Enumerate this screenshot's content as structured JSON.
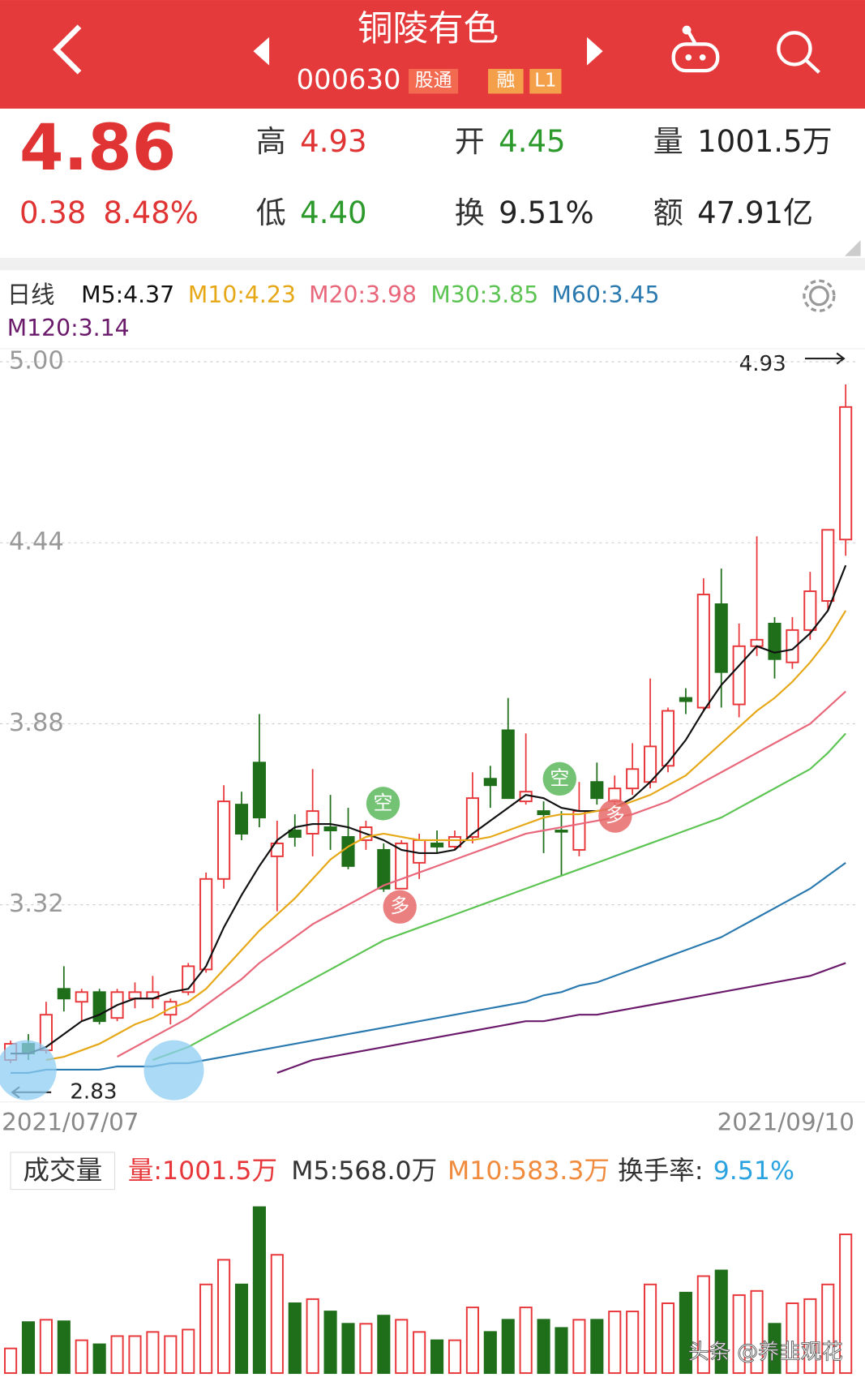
{
  "header": {
    "title": "铜陵有色",
    "code": "000630",
    "tags": [
      "股通",
      "融",
      "L1"
    ]
  },
  "quote": {
    "price": "4.86",
    "change": "0.38",
    "change_pct": "8.48%",
    "stats": [
      {
        "label": "高",
        "value": "4.93"
      },
      {
        "label": "低",
        "value": "4.40"
      },
      {
        "label": "开",
        "value": "4.45"
      },
      {
        "label": "换",
        "value": "9.51%"
      },
      {
        "label": "量",
        "value": "1001.5万"
      },
      {
        "label": "额",
        "value": "47.91亿"
      }
    ]
  },
  "chart_data": [
    {
      "type": "candlestick",
      "period": "日线",
      "up_color": "#e8373a",
      "down_color": "#1f6e1a",
      "categories": [
        "2021/07/07",
        null,
        null,
        null,
        null,
        null,
        null,
        null,
        null,
        null,
        null,
        null,
        null,
        null,
        null,
        null,
        null,
        null,
        null,
        null,
        null,
        null,
        null,
        null,
        null,
        null,
        null,
        null,
        null,
        null,
        null,
        null,
        null,
        null,
        null,
        null,
        null,
        null,
        null,
        null,
        null,
        null,
        null,
        null,
        null,
        null,
        null,
        "2021/09/10"
      ],
      "open": [
        2.84,
        2.89,
        2.87,
        3.06,
        3.02,
        3.05,
        2.97,
        3.03,
        3.03,
        2.98,
        3.05,
        3.12,
        3.4,
        3.63,
        3.76,
        3.47,
        3.55,
        3.54,
        3.56,
        3.53,
        3.52,
        3.49,
        3.37,
        3.45,
        3.51,
        3.5,
        3.53,
        3.71,
        3.86,
        3.64,
        3.61,
        3.55,
        3.49,
        3.7,
        3.64,
        3.68,
        3.7,
        3.75,
        3.96,
        3.93,
        4.25,
        3.94,
        4.12,
        4.19,
        4.07,
        4.17,
        4.26,
        4.45
      ],
      "high": [
        2.9,
        2.92,
        3.02,
        3.13,
        3.06,
        3.06,
        3.06,
        3.08,
        3.1,
        3.03,
        3.14,
        3.42,
        3.69,
        3.67,
        3.91,
        3.58,
        3.6,
        3.74,
        3.66,
        3.62,
        3.58,
        3.51,
        3.52,
        3.54,
        3.55,
        3.55,
        3.73,
        3.75,
        3.96,
        3.85,
        3.64,
        3.61,
        3.7,
        3.76,
        3.72,
        3.82,
        4.02,
        3.93,
        3.99,
        4.33,
        4.36,
        4.19,
        4.46,
        4.21,
        4.21,
        4.35,
        4.48,
        4.93
      ],
      "low": [
        2.83,
        2.84,
        2.86,
        2.99,
        2.96,
        2.95,
        2.96,
        3.0,
        3.0,
        2.95,
        3.04,
        3.11,
        3.37,
        3.52,
        3.56,
        3.3,
        3.5,
        3.47,
        3.49,
        3.43,
        3.49,
        3.36,
        3.37,
        3.4,
        3.48,
        3.49,
        3.51,
        3.62,
        3.65,
        3.63,
        3.48,
        3.41,
        3.47,
        3.63,
        3.61,
        3.66,
        3.68,
        3.73,
        3.91,
        3.92,
        3.93,
        3.9,
        4.09,
        4.02,
        4.05,
        4.14,
        4.23,
        4.4
      ],
      "close": [
        2.89,
        2.86,
        2.98,
        3.03,
        3.05,
        2.96,
        3.05,
        3.05,
        3.05,
        3.02,
        3.13,
        3.4,
        3.64,
        3.54,
        3.59,
        3.51,
        3.53,
        3.61,
        3.55,
        3.44,
        3.56,
        3.37,
        3.51,
        3.52,
        3.5,
        3.53,
        3.65,
        3.69,
        3.65,
        3.67,
        3.6,
        3.55,
        3.61,
        3.65,
        3.68,
        3.74,
        3.81,
        3.92,
        3.95,
        4.28,
        4.04,
        4.12,
        4.14,
        4.08,
        4.17,
        4.29,
        4.48,
        4.86
      ],
      "series": [
        {
          "name": "M5:4.37",
          "color": "#111111",
          "values": [
            2.86,
            2.86,
            2.88,
            2.92,
            2.96,
            2.98,
            3.01,
            3.03,
            3.03,
            3.05,
            3.06,
            3.13,
            3.25,
            3.35,
            3.44,
            3.52,
            3.56,
            3.57,
            3.57,
            3.56,
            3.54,
            3.52,
            3.49,
            3.48,
            3.48,
            3.49,
            3.54,
            3.58,
            3.62,
            3.66,
            3.65,
            3.62,
            3.61,
            3.61,
            3.62,
            3.65,
            3.7,
            3.76,
            3.83,
            3.92,
            4.0,
            4.06,
            4.12,
            4.1,
            4.11,
            4.16,
            4.23,
            4.37
          ]
        },
        {
          "name": "M10:4.23",
          "color": "#e6a817",
          "values": [
            null,
            null,
            2.84,
            2.85,
            2.87,
            2.89,
            2.92,
            2.95,
            2.97,
            3.0,
            3.02,
            3.06,
            3.12,
            3.18,
            3.24,
            3.29,
            3.34,
            3.4,
            3.46,
            3.5,
            3.53,
            3.54,
            3.53,
            3.52,
            3.52,
            3.52,
            3.52,
            3.53,
            3.55,
            3.57,
            3.59,
            3.6,
            3.6,
            3.61,
            3.62,
            3.64,
            3.66,
            3.69,
            3.72,
            3.77,
            3.82,
            3.87,
            3.92,
            3.96,
            4.01,
            4.07,
            4.14,
            4.23
          ]
        },
        {
          "name": "M20:3.98",
          "color": "#e8677b",
          "values": [
            null,
            null,
            null,
            null,
            null,
            null,
            2.85,
            2.88,
            2.91,
            2.94,
            2.97,
            3.01,
            3.05,
            3.09,
            3.14,
            3.18,
            3.22,
            3.26,
            3.29,
            3.32,
            3.35,
            3.38,
            3.4,
            3.42,
            3.44,
            3.46,
            3.48,
            3.5,
            3.52,
            3.54,
            3.55,
            3.56,
            3.57,
            3.58,
            3.59,
            3.6,
            3.62,
            3.64,
            3.67,
            3.7,
            3.73,
            3.76,
            3.79,
            3.82,
            3.85,
            3.88,
            3.93,
            3.98
          ]
        },
        {
          "name": "M30:3.85",
          "color": "#5cc452",
          "values": [
            null,
            null,
            null,
            null,
            null,
            null,
            null,
            null,
            2.84,
            2.86,
            2.88,
            2.91,
            2.94,
            2.97,
            3.0,
            3.03,
            3.06,
            3.09,
            3.12,
            3.15,
            3.18,
            3.21,
            3.23,
            3.25,
            3.27,
            3.29,
            3.31,
            3.33,
            3.35,
            3.37,
            3.39,
            3.41,
            3.43,
            3.45,
            3.47,
            3.49,
            3.51,
            3.53,
            3.55,
            3.57,
            3.59,
            3.62,
            3.65,
            3.68,
            3.71,
            3.74,
            3.79,
            3.85
          ]
        },
        {
          "name": "M60:3.45",
          "color": "#2a7ab0",
          "values": [
            2.8,
            2.8,
            2.81,
            2.81,
            2.81,
            2.81,
            2.82,
            2.82,
            2.82,
            2.83,
            2.83,
            2.84,
            2.85,
            2.86,
            2.87,
            2.88,
            2.89,
            2.9,
            2.91,
            2.92,
            2.93,
            2.94,
            2.95,
            2.96,
            2.97,
            2.98,
            2.99,
            3.0,
            3.01,
            3.02,
            3.04,
            3.05,
            3.07,
            3.08,
            3.1,
            3.12,
            3.14,
            3.16,
            3.18,
            3.2,
            3.22,
            3.25,
            3.28,
            3.31,
            3.34,
            3.37,
            3.41,
            3.45
          ]
        },
        {
          "name": "M120:3.14",
          "color": "#6b1a6b",
          "values": [
            null,
            null,
            null,
            null,
            null,
            null,
            null,
            null,
            null,
            null,
            null,
            null,
            null,
            null,
            null,
            2.8,
            2.82,
            2.84,
            2.85,
            2.86,
            2.87,
            2.88,
            2.89,
            2.9,
            2.91,
            2.92,
            2.93,
            2.94,
            2.95,
            2.96,
            2.96,
            2.97,
            2.98,
            2.98,
            2.99,
            3.0,
            3.01,
            3.02,
            3.03,
            3.04,
            3.05,
            3.06,
            3.07,
            3.08,
            3.09,
            3.1,
            3.12,
            3.14
          ]
        }
      ],
      "ylim": [
        2.71,
        5.04
      ],
      "yticks": [
        {
          "value": 5,
          "label": "5.00"
        },
        {
          "value": 4.44,
          "label": "4.44"
        },
        {
          "value": 3.88,
          "label": "3.88"
        },
        {
          "value": 3.32,
          "label": "3.32"
        }
      ],
      "grid": true,
      "high_label": "4.93",
      "low_label": "2.83",
      "signals": [
        {
          "text": "空"
        },
        {
          "text": "多"
        },
        {
          "text": "空"
        },
        {
          "text": "多"
        }
      ]
    },
    {
      "type": "bar",
      "title": "成交量",
      "legend": [
        {
          "text": "量:1001.5万",
          "color": "#e8373a"
        },
        {
          "text": "M5:568.0万",
          "color": "#333333"
        },
        {
          "text": "M10:583.3万",
          "color": "#f08a3c"
        },
        {
          "text": "换手率:",
          "color": "#333333"
        },
        {
          "text": "9.51%",
          "color": "#2aa3e0"
        }
      ],
      "values": [
        178,
        368,
        385,
        374,
        237,
        208,
        267,
        267,
        297,
        267,
        314,
        640,
        818,
        640,
        1198,
        854,
        504,
        534,
        445,
        356,
        356,
        415,
        385,
        297,
        237,
        237,
        474,
        297,
        385,
        474,
        385,
        326,
        385,
        385,
        445,
        445,
        640,
        504,
        581,
        700,
        741,
        563,
        593,
        356,
        504,
        534,
        640,
        1001.5
      ],
      "ylim": [
        0,
        1275
      ]
    }
  ],
  "watermark": "头条 @养韭观花"
}
